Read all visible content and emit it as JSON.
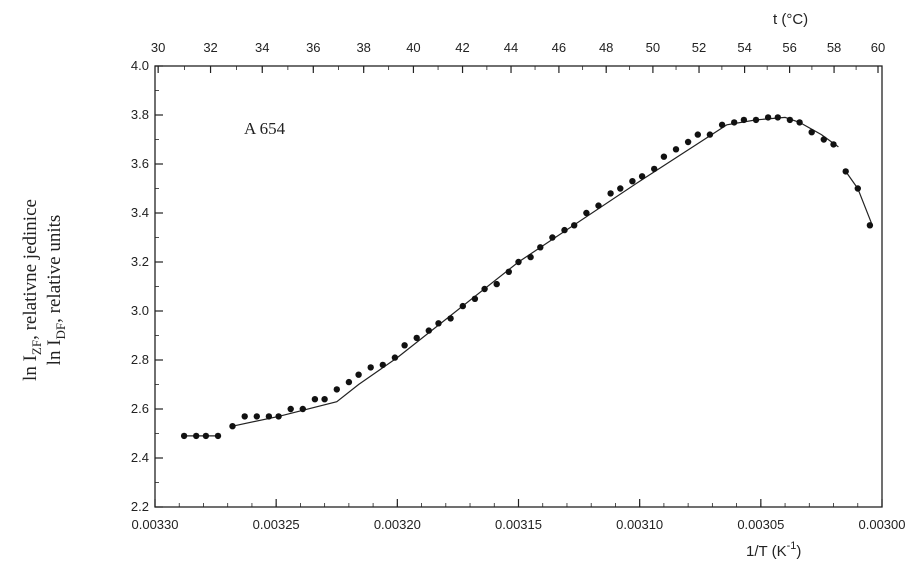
{
  "chart_data": {
    "type": "scatter",
    "annotation": "A 654",
    "ylabel_line1": {
      "main": "ln I",
      "sub": "ZF",
      "rest": ", relativne jedinice"
    },
    "ylabel_line2": {
      "main": "ln I",
      "sub": "DF",
      "rest": ", relative units"
    },
    "xlabel": {
      "main": "1/T (K",
      "sup": "-1",
      "end": ")"
    },
    "top_xlabel": "t (°C)",
    "xlim": [
      0.0033,
      0.003
    ],
    "ylim": [
      2.2,
      4.0
    ],
    "x_ticks": [
      "0.00330",
      "0.00325",
      "0.00320",
      "0.00315",
      "0.00310",
      "0.00305",
      "0.00300"
    ],
    "y_ticks": [
      "2.2",
      "2.4",
      "2.6",
      "2.8",
      "3.0",
      "3.2",
      "3.4",
      "3.6",
      "3.8",
      "4.0"
    ],
    "top_ticks": [
      "30",
      "32",
      "34",
      "36",
      "38",
      "40",
      "42",
      "44",
      "46",
      "48",
      "50",
      "52",
      "54",
      "56",
      "58",
      "60"
    ],
    "points": [
      [
        0.003288,
        2.49
      ],
      [
        0.003283,
        2.49
      ],
      [
        0.003279,
        2.49
      ],
      [
        0.003274,
        2.49
      ],
      [
        0.003268,
        2.53
      ],
      [
        0.003263,
        2.57
      ],
      [
        0.003258,
        2.57
      ],
      [
        0.003253,
        2.57
      ],
      [
        0.003249,
        2.57
      ],
      [
        0.003244,
        2.6
      ],
      [
        0.003239,
        2.6
      ],
      [
        0.003234,
        2.64
      ],
      [
        0.00323,
        2.64
      ],
      [
        0.003225,
        2.68
      ],
      [
        0.00322,
        2.71
      ],
      [
        0.003216,
        2.74
      ],
      [
        0.003211,
        2.77
      ],
      [
        0.003206,
        2.78
      ],
      [
        0.003201,
        2.81
      ],
      [
        0.003197,
        2.86
      ],
      [
        0.003192,
        2.89
      ],
      [
        0.003187,
        2.92
      ],
      [
        0.003183,
        2.95
      ],
      [
        0.003178,
        2.97
      ],
      [
        0.003173,
        3.02
      ],
      [
        0.003168,
        3.05
      ],
      [
        0.003164,
        3.09
      ],
      [
        0.003159,
        3.11
      ],
      [
        0.003154,
        3.16
      ],
      [
        0.00315,
        3.2
      ],
      [
        0.003145,
        3.22
      ],
      [
        0.003141,
        3.26
      ],
      [
        0.003136,
        3.3
      ],
      [
        0.003131,
        3.33
      ],
      [
        0.003127,
        3.35
      ],
      [
        0.003122,
        3.4
      ],
      [
        0.003117,
        3.43
      ],
      [
        0.003112,
        3.48
      ],
      [
        0.003108,
        3.5
      ],
      [
        0.003103,
        3.53
      ],
      [
        0.003099,
        3.55
      ],
      [
        0.003094,
        3.58
      ],
      [
        0.00309,
        3.63
      ],
      [
        0.003085,
        3.66
      ],
      [
        0.00308,
        3.69
      ],
      [
        0.003076,
        3.72
      ],
      [
        0.003071,
        3.72
      ],
      [
        0.003066,
        3.76
      ],
      [
        0.003061,
        3.77
      ],
      [
        0.003057,
        3.78
      ],
      [
        0.003052,
        3.78
      ],
      [
        0.003047,
        3.79
      ],
      [
        0.003043,
        3.79
      ],
      [
        0.003038,
        3.78
      ],
      [
        0.003034,
        3.77
      ],
      [
        0.003029,
        3.73
      ],
      [
        0.003024,
        3.7
      ],
      [
        0.00302,
        3.68
      ],
      [
        0.003015,
        3.57
      ],
      [
        0.00301,
        3.5
      ],
      [
        0.003005,
        3.35
      ]
    ],
    "fit_segments": [
      [
        [
          0.003288,
          2.49
        ],
        [
          0.003274,
          2.49
        ]
      ],
      [
        [
          0.003268,
          2.53
        ],
        [
          0.003249,
          2.57
        ],
        [
          0.003225,
          2.63
        ],
        [
          0.003216,
          2.7
        ],
        [
          0.0032,
          2.81
        ],
        [
          0.00315,
          3.2
        ],
        [
          0.0031,
          3.53
        ],
        [
          0.003064,
          3.76
        ],
        [
          0.003052,
          3.78
        ],
        [
          0.00304,
          3.79
        ],
        [
          0.003034,
          3.77
        ],
        [
          0.003025,
          3.72
        ],
        [
          0.003018,
          3.67
        ]
      ],
      [
        [
          0.003015,
          3.57
        ],
        [
          0.00301,
          3.5
        ],
        [
          0.003004,
          3.35
        ]
      ]
    ]
  }
}
